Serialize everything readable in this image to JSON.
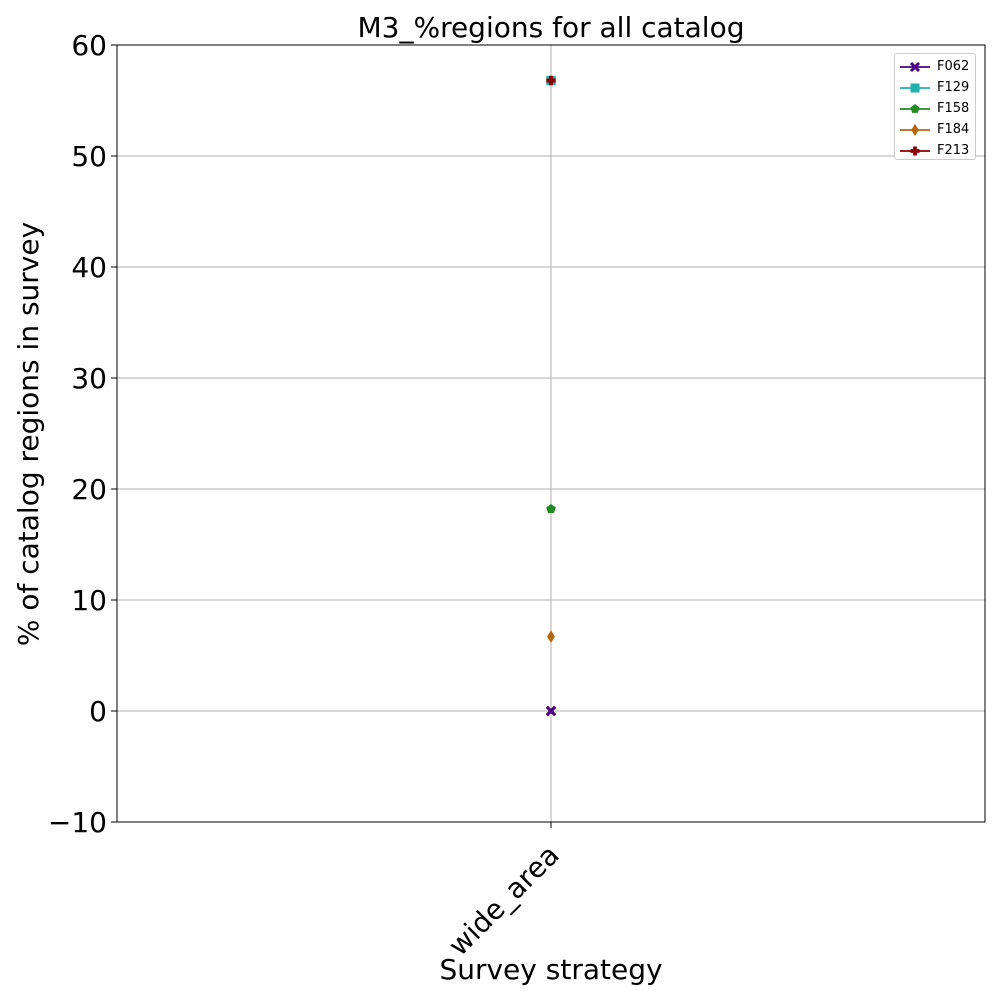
{
  "chart_data": {
    "type": "line",
    "title": "M3_%regions for all catalog",
    "xlabel": "Survey strategy",
    "ylabel": "% of catalog regions in survey",
    "categories": [
      "wide_area"
    ],
    "ylim": [
      -10,
      60
    ],
    "yticks": [
      -10,
      0,
      10,
      20,
      30,
      40,
      50,
      60
    ],
    "ytick_labels": [
      "−10",
      "0",
      "10",
      "20",
      "30",
      "40",
      "50",
      "60"
    ],
    "grid": true,
    "legend_position": "top-right",
    "series": [
      {
        "name": "F062",
        "values": [
          0.0
        ],
        "color": "#4b0082",
        "marker": "x-filled"
      },
      {
        "name": "F129",
        "values": [
          56.8
        ],
        "color": "#20b2aa",
        "marker": "square"
      },
      {
        "name": "F158",
        "values": [
          18.2
        ],
        "color": "#228b22",
        "marker": "pentagon"
      },
      {
        "name": "F184",
        "values": [
          6.7
        ],
        "color": "#b8680e",
        "marker": "diamond"
      },
      {
        "name": "F213",
        "values": [
          56.8
        ],
        "color": "#8b0000",
        "marker": "plus-filled"
      }
    ]
  }
}
